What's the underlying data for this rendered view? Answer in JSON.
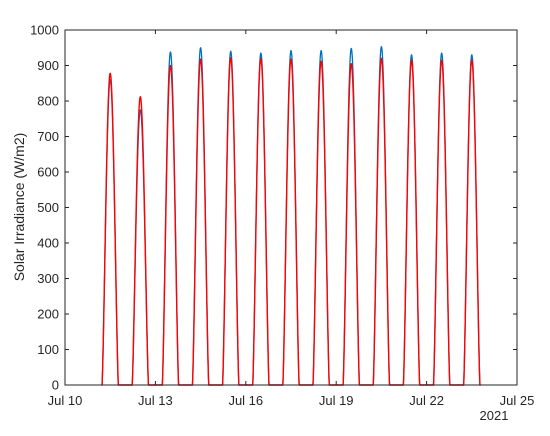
{
  "chart_data": {
    "type": "line",
    "title": "",
    "xlabel": "",
    "ylabel": "Solar Irradiance (W/m2)",
    "x_secondary_label": "2021",
    "x_tick_labels": [
      "Jul 10",
      "Jul 13",
      "Jul 16",
      "Jul 19",
      "Jul 22",
      "Jul 25"
    ],
    "xlim": [
      "2021-07-10",
      "2021-07-25"
    ],
    "ylim": [
      0,
      1000
    ],
    "y_ticks": [
      0,
      100,
      200,
      300,
      400,
      500,
      600,
      700,
      800,
      900,
      1000
    ],
    "grid": false,
    "legend": "none",
    "series": [
      {
        "color": "#0072BD",
        "daily_peaks": [
          {
            "date": "2021-07-11",
            "peak": 860
          },
          {
            "date": "2021-07-12",
            "peak": 775
          },
          {
            "date": "2021-07-13",
            "peak": 938
          },
          {
            "date": "2021-07-14",
            "peak": 950
          },
          {
            "date": "2021-07-15",
            "peak": 940
          },
          {
            "date": "2021-07-16",
            "peak": 935
          },
          {
            "date": "2021-07-17",
            "peak": 942
          },
          {
            "date": "2021-07-18",
            "peak": 942
          },
          {
            "date": "2021-07-19",
            "peak": 948
          },
          {
            "date": "2021-07-20",
            "peak": 953
          },
          {
            "date": "2021-07-21",
            "peak": 930
          },
          {
            "date": "2021-07-22",
            "peak": 935
          },
          {
            "date": "2021-07-23",
            "peak": 930
          }
        ]
      },
      {
        "color": "#FF0000",
        "daily_peaks": [
          {
            "date": "2021-07-11",
            "peak": 878
          },
          {
            "date": "2021-07-12",
            "peak": 812
          },
          {
            "date": "2021-07-13",
            "peak": 900
          },
          {
            "date": "2021-07-14",
            "peak": 918
          },
          {
            "date": "2021-07-15",
            "peak": 922
          },
          {
            "date": "2021-07-16",
            "peak": 920
          },
          {
            "date": "2021-07-17",
            "peak": 918
          },
          {
            "date": "2021-07-18",
            "peak": 912
          },
          {
            "date": "2021-07-19",
            "peak": 905
          },
          {
            "date": "2021-07-20",
            "peak": 920
          },
          {
            "date": "2021-07-21",
            "peak": 915
          },
          {
            "date": "2021-07-22",
            "peak": 915
          },
          {
            "date": "2021-07-23",
            "peak": 915
          }
        ]
      }
    ]
  }
}
